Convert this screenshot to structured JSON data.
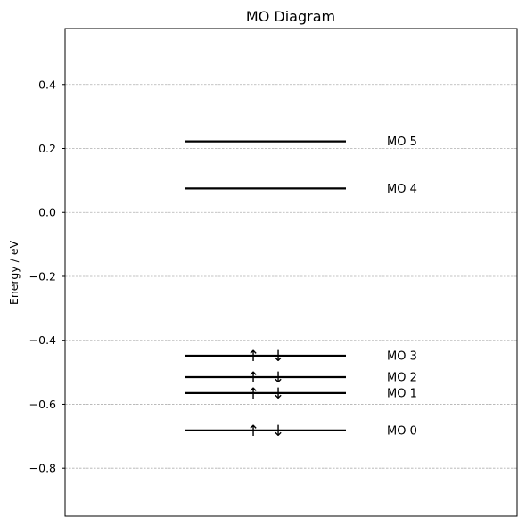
{
  "chart_data": {
    "type": "diagram",
    "title": "MO Diagram",
    "xlabel": "",
    "ylabel": "Energy / eV",
    "ylim": [
      -0.95,
      0.575
    ],
    "yticks": [
      -0.8,
      -0.6,
      -0.4,
      -0.2,
      0.0,
      0.2,
      0.4
    ],
    "ytick_labels": [
      "−0.8",
      "−0.6",
      "−0.4",
      "−0.2",
      "0.0",
      "0.2",
      "0.4"
    ],
    "grid": "y-dashed",
    "levels": [
      {
        "label": "MO 0",
        "energy": -0.682,
        "electrons": 2
      },
      {
        "label": "MO 1",
        "energy": -0.565,
        "electrons": 2
      },
      {
        "label": "MO 2",
        "energy": -0.515,
        "electrons": 2
      },
      {
        "label": "MO 3",
        "energy": -0.448,
        "electrons": 2
      },
      {
        "label": "MO 4",
        "energy": 0.075,
        "electrons": 0
      },
      {
        "label": "MO 5",
        "energy": 0.222,
        "electrons": 0
      }
    ],
    "spin_symbols": {
      "up": "↑",
      "down": "↓"
    }
  }
}
